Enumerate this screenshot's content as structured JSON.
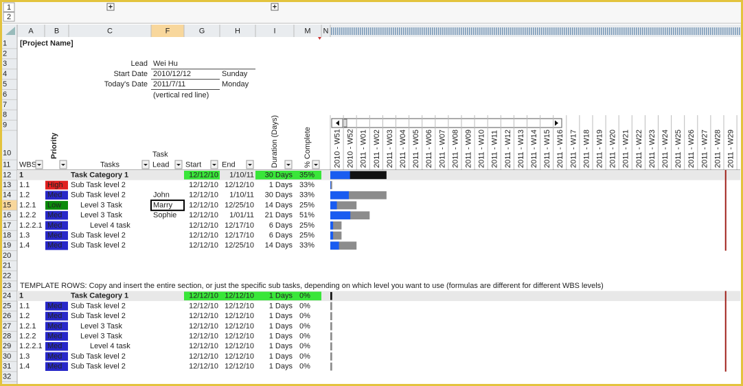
{
  "outline": {
    "levels": [
      "1",
      "2"
    ],
    "buttons": [
      "+",
      "+"
    ]
  },
  "columns": [
    "A",
    "B",
    "C",
    "F",
    "G",
    "H",
    "I",
    "M",
    "N"
  ],
  "row_numbers": [
    "1",
    "2",
    "3",
    "4",
    "5",
    "6",
    "7",
    "8",
    "9",
    "10",
    "11",
    "12",
    "13",
    "14",
    "15",
    "16",
    "17",
    "18",
    "19",
    "20",
    "21",
    "22",
    "23",
    "24",
    "25",
    "26",
    "27",
    "28",
    "29",
    "30",
    "31",
    "32"
  ],
  "header": {
    "title": "[Project Name]",
    "lead_label": "Lead",
    "lead": "Wei Hu",
    "start_label": "Start Date",
    "start": "2010/12/12",
    "start_day": "Sunday",
    "today_label": "Today's Date",
    "today": "2011/7/11",
    "today_day": "Monday",
    "note": "(vertical red line)"
  },
  "table_headers": {
    "wbs": "WBS",
    "priority": "Priority",
    "tasks": "Tasks",
    "lead_1": "Task",
    "lead_2": "Lead",
    "start": "Start",
    "end": "End",
    "duration": "Duration (Days)",
    "complete": "% Complete"
  },
  "weeks": [
    "2010 - W51",
    "2010 - W52",
    "2011 - W01",
    "2011 - W02",
    "2011 - W03",
    "2011 - W04",
    "2011 - W05",
    "2011 - W06",
    "2011 - W07",
    "2011 - W08",
    "2011 - W09",
    "2011 - W10",
    "2011 - W11",
    "2011 - W12",
    "2011 - W13",
    "2011 - W14",
    "2011 - W15",
    "2011 - W16",
    "2011 - W17",
    "2011 - W18",
    "2011 - W19",
    "2011 - W20",
    "2011 - W21",
    "2011 - W22",
    "2011 - W23",
    "2011 - W24",
    "2011 - W25",
    "2011 - W26",
    "2011 - W27",
    "2011 - W28",
    "2011 - W29"
  ],
  "tasks": [
    {
      "wbs": "1",
      "task": "Task Category 1",
      "start": "12/12/10",
      "end": "1/10/11",
      "duration": "30 Days",
      "complete": "35%"
    },
    {
      "wbs": "1.1",
      "priority": "High",
      "task": "Sub Task level 2",
      "start": "12/12/10",
      "end": "12/12/10",
      "duration": "1 Days",
      "complete": "33%"
    },
    {
      "wbs": "1.2",
      "priority": "Med",
      "task": "Sub Task level 2",
      "lead": "John",
      "start": "12/12/10",
      "end": "1/10/11",
      "duration": "30 Days",
      "complete": "33%"
    },
    {
      "wbs": "1.2.1",
      "priority": "Low",
      "task": "Level 3 Task",
      "lead": "Marry",
      "start": "12/12/10",
      "end": "12/25/10",
      "duration": "14 Days",
      "complete": "25%"
    },
    {
      "wbs": "1.2.2",
      "priority": "Med",
      "task": "Level 3 Task",
      "lead": "Sophie",
      "start": "12/12/10",
      "end": "1/01/11",
      "duration": "21 Days",
      "complete": "51%"
    },
    {
      "wbs": "1.2.2.1",
      "priority": "Med",
      "task": "Level 4 task",
      "start": "12/12/10",
      "end": "12/17/10",
      "duration": "6 Days",
      "complete": "25%"
    },
    {
      "wbs": "1.3",
      "priority": "Med",
      "task": "Sub Task level 2",
      "start": "12/12/10",
      "end": "12/17/10",
      "duration": "6 Days",
      "complete": "25%"
    },
    {
      "wbs": "1.4",
      "priority": "Med",
      "task": "Sub Task level 2",
      "start": "12/12/10",
      "end": "12/25/10",
      "duration": "14 Days",
      "complete": "33%"
    }
  ],
  "template_note": "TEMPLATE ROWS: Copy and insert the entire section, or just the specific sub tasks, depending on which level you want to use (formulas are different for different WBS levels)",
  "template_tasks": [
    {
      "wbs": "1",
      "task": "Task Category 1",
      "start": "12/12/10",
      "end": "12/12/10",
      "duration": "1 Days",
      "complete": "0%"
    },
    {
      "wbs": "1.1",
      "priority": "Med",
      "task": "Sub Task level 2",
      "start": "12/12/10",
      "end": "12/12/10",
      "duration": "1 Days",
      "complete": "0%"
    },
    {
      "wbs": "1.2",
      "priority": "Med",
      "task": "Sub Task level 2",
      "start": "12/12/10",
      "end": "12/12/10",
      "duration": "1 Days",
      "complete": "0%"
    },
    {
      "wbs": "1.2.1",
      "priority": "Med",
      "task": "Level 3 Task",
      "start": "12/12/10",
      "end": "12/12/10",
      "duration": "1 Days",
      "complete": "0%"
    },
    {
      "wbs": "1.2.2",
      "priority": "Med",
      "task": "Level 3 Task",
      "start": "12/12/10",
      "end": "12/12/10",
      "duration": "1 Days",
      "complete": "0%"
    },
    {
      "wbs": "1.2.2.1",
      "priority": "Med",
      "task": "Level 4 task",
      "start": "12/12/10",
      "end": "12/12/10",
      "duration": "1 Days",
      "complete": "0%"
    },
    {
      "wbs": "1.3",
      "priority": "Med",
      "task": "Sub Task level 2",
      "start": "12/12/10",
      "end": "12/12/10",
      "duration": "1 Days",
      "complete": "0%"
    },
    {
      "wbs": "1.4",
      "priority": "Med",
      "task": "Sub Task level 2",
      "start": "12/12/10",
      "end": "12/12/10",
      "duration": "1 Days",
      "complete": "0%"
    }
  ]
}
